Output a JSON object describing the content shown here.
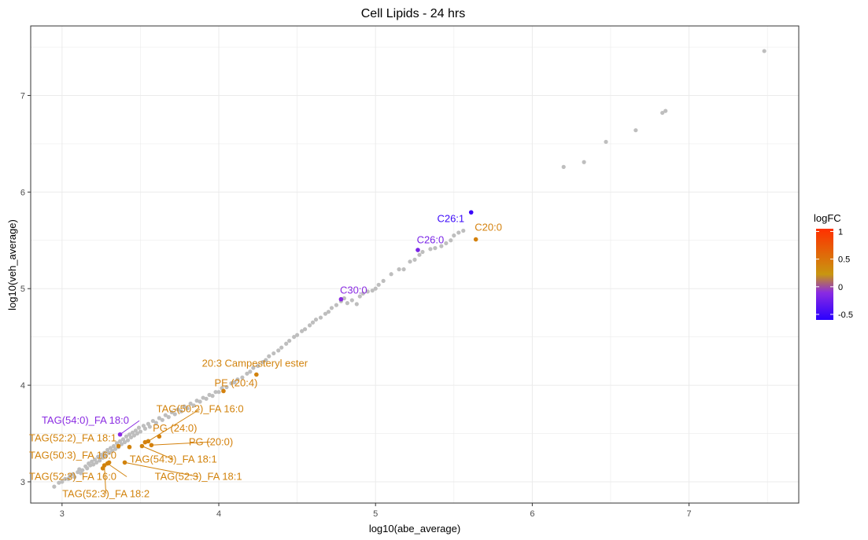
{
  "chart_data": {
    "type": "scatter",
    "title": "Cell Lipids - 24 hrs",
    "xlabel": "log10(abe_average)",
    "ylabel": "log10(veh_average)",
    "xlim": [
      2.8,
      7.7
    ],
    "ylim": [
      2.78,
      7.72
    ],
    "xticks": [
      3,
      4,
      5,
      6,
      7
    ],
    "yticks": [
      3,
      4,
      5,
      6,
      7
    ],
    "grid": true,
    "legend": {
      "title": "logFC",
      "position": "right",
      "ticks": [
        1,
        0.5,
        0,
        -0.5
      ],
      "range": [
        -0.6,
        1.05
      ],
      "colors": {
        "low": "#2a00ff",
        "mid_low": "#8a2be2",
        "mid": "#c89610",
        "high": "#ff3000"
      }
    },
    "background_color": "#bebebe",
    "background_points": [
      [
        2.95,
        2.95
      ],
      [
        2.98,
        2.99
      ],
      [
        3.0,
        3.0
      ],
      [
        3.02,
        3.03
      ],
      [
        3.04,
        3.03
      ],
      [
        3.05,
        3.06
      ],
      [
        3.07,
        3.08
      ],
      [
        3.08,
        3.05
      ],
      [
        3.1,
        3.1
      ],
      [
        3.11,
        3.13
      ],
      [
        3.12,
        3.09
      ],
      [
        3.13,
        3.12
      ],
      [
        3.15,
        3.16
      ],
      [
        3.16,
        3.14
      ],
      [
        3.17,
        3.19
      ],
      [
        3.18,
        3.17
      ],
      [
        3.19,
        3.21
      ],
      [
        3.2,
        3.18
      ],
      [
        3.21,
        3.23
      ],
      [
        3.22,
        3.2
      ],
      [
        3.23,
        3.26
      ],
      [
        3.24,
        3.22
      ],
      [
        3.25,
        3.28
      ],
      [
        3.26,
        3.25
      ],
      [
        3.27,
        3.3
      ],
      [
        3.28,
        3.27
      ],
      [
        3.29,
        3.33
      ],
      [
        3.3,
        3.3
      ],
      [
        3.31,
        3.35
      ],
      [
        3.32,
        3.32
      ],
      [
        3.33,
        3.37
      ],
      [
        3.34,
        3.34
      ],
      [
        3.35,
        3.4
      ],
      [
        3.36,
        3.36
      ],
      [
        3.37,
        3.42
      ],
      [
        3.38,
        3.39
      ],
      [
        3.39,
        3.44
      ],
      [
        3.4,
        3.41
      ],
      [
        3.41,
        3.47
      ],
      [
        3.42,
        3.43
      ],
      [
        3.43,
        3.49
      ],
      [
        3.44,
        3.46
      ],
      [
        3.45,
        3.51
      ],
      [
        3.46,
        3.48
      ],
      [
        3.47,
        3.53
      ],
      [
        3.48,
        3.5
      ],
      [
        3.49,
        3.56
      ],
      [
        3.5,
        3.52
      ],
      [
        3.52,
        3.58
      ],
      [
        3.53,
        3.55
      ],
      [
        3.55,
        3.6
      ],
      [
        3.56,
        3.57
      ],
      [
        3.58,
        3.63
      ],
      [
        3.6,
        3.61
      ],
      [
        3.62,
        3.66
      ],
      [
        3.64,
        3.64
      ],
      [
        3.66,
        3.69
      ],
      [
        3.68,
        3.67
      ],
      [
        3.7,
        3.72
      ],
      [
        3.72,
        3.7
      ],
      [
        3.74,
        3.75
      ],
      [
        3.76,
        3.73
      ],
      [
        3.78,
        3.78
      ],
      [
        3.8,
        3.76
      ],
      [
        3.82,
        3.81
      ],
      [
        3.84,
        3.79
      ],
      [
        3.86,
        3.84
      ],
      [
        3.88,
        3.83
      ],
      [
        3.9,
        3.87
      ],
      [
        3.92,
        3.86
      ],
      [
        3.94,
        3.9
      ],
      [
        3.96,
        3.89
      ],
      [
        3.98,
        3.93
      ],
      [
        4.0,
        3.93
      ],
      [
        4.02,
        3.97
      ],
      [
        4.05,
        3.98
      ],
      [
        4.08,
        4.02
      ],
      [
        4.1,
        4.03
      ],
      [
        4.12,
        4.06
      ],
      [
        4.15,
        4.08
      ],
      [
        4.18,
        4.12
      ],
      [
        4.2,
        4.14
      ],
      [
        4.22,
        4.18
      ],
      [
        4.25,
        4.2
      ],
      [
        4.28,
        4.24
      ],
      [
        4.3,
        4.26
      ],
      [
        4.32,
        4.3
      ],
      [
        4.35,
        4.33
      ],
      [
        4.38,
        4.36
      ],
      [
        4.4,
        4.39
      ],
      [
        4.43,
        4.43
      ],
      [
        4.45,
        4.46
      ],
      [
        4.48,
        4.5
      ],
      [
        4.5,
        4.52
      ],
      [
        4.53,
        4.56
      ],
      [
        4.55,
        4.58
      ],
      [
        4.58,
        4.62
      ],
      [
        4.6,
        4.65
      ],
      [
        4.62,
        4.68
      ],
      [
        4.65,
        4.7
      ],
      [
        4.68,
        4.74
      ],
      [
        4.7,
        4.76
      ],
      [
        4.72,
        4.8
      ],
      [
        4.75,
        4.83
      ],
      [
        4.78,
        4.87
      ],
      [
        4.8,
        4.9
      ],
      [
        4.82,
        4.85
      ],
      [
        4.85,
        4.88
      ],
      [
        4.88,
        4.84
      ],
      [
        4.9,
        4.92
      ],
      [
        4.92,
        4.95
      ],
      [
        4.95,
        4.97
      ],
      [
        4.98,
        4.98
      ],
      [
        5.0,
        5.0
      ],
      [
        5.02,
        5.04
      ],
      [
        5.05,
        5.08
      ],
      [
        5.1,
        5.15
      ],
      [
        5.15,
        5.2
      ],
      [
        5.18,
        5.2
      ],
      [
        5.22,
        5.28
      ],
      [
        5.25,
        5.3
      ],
      [
        5.28,
        5.35
      ],
      [
        5.3,
        5.38
      ],
      [
        5.35,
        5.41
      ],
      [
        5.38,
        5.42
      ],
      [
        5.42,
        5.44
      ],
      [
        5.45,
        5.47
      ],
      [
        5.48,
        5.5
      ],
      [
        5.5,
        5.55
      ],
      [
        5.53,
        5.58
      ],
      [
        5.56,
        5.6
      ],
      [
        6.2,
        6.26
      ],
      [
        6.33,
        6.31
      ],
      [
        6.47,
        6.52
      ],
      [
        6.66,
        6.64
      ],
      [
        6.83,
        6.82
      ],
      [
        6.85,
        6.84
      ],
      [
        7.48,
        7.46
      ]
    ],
    "highlighted": [
      {
        "label": "C26:1",
        "x": 5.61,
        "y": 5.79,
        "logFC": -0.55,
        "lx": 5.48,
        "ly": 5.69,
        "anchor": "middle"
      },
      {
        "label": "C20:0",
        "x": 5.64,
        "y": 5.51,
        "logFC": 0.3,
        "lx": 5.72,
        "ly": 5.6,
        "anchor": "middle"
      },
      {
        "label": "C26:0",
        "x": 5.27,
        "y": 5.4,
        "logFC": -0.35,
        "lx": 5.35,
        "ly": 5.47,
        "anchor": "middle"
      },
      {
        "label": "C30:0",
        "x": 4.78,
        "y": 4.89,
        "logFC": -0.3,
        "lx": 4.86,
        "ly": 4.95,
        "anchor": "middle"
      },
      {
        "label": "20:3 Campesteryl ester",
        "x": 4.24,
        "y": 4.11,
        "logFC": 0.28,
        "lx": 4.23,
        "ly": 4.19,
        "anchor": "middle"
      },
      {
        "label": "PE (20:4)",
        "x": 4.03,
        "y": 3.94,
        "logFC": 0.3,
        "lx": 4.11,
        "ly": 3.99,
        "anchor": "middle"
      },
      {
        "label": "TAG(50:2)_FA 16:0",
        "x": 3.55,
        "y": 3.42,
        "logFC": 0.28,
        "lx": 3.88,
        "ly": 3.72,
        "anchor": "middle",
        "line": true
      },
      {
        "label": "TAG(54:0)_FA 18:0",
        "x": 3.37,
        "y": 3.49,
        "logFC": -0.3,
        "lx": 2.87,
        "ly": 3.6,
        "anchor": "start",
        "line": true
      },
      {
        "label": "PG (24:0)",
        "x": 3.53,
        "y": 3.41,
        "logFC": 0.3,
        "lx": 3.72,
        "ly": 3.52,
        "anchor": "middle"
      },
      {
        "label": "TAG(52:2)_FA 18:1",
        "x": 3.36,
        "y": 3.37,
        "logFC": 0.28,
        "lx": 2.79,
        "ly": 3.42,
        "anchor": "start"
      },
      {
        "label": "PG (20:0)",
        "x": 3.57,
        "y": 3.38,
        "logFC": 0.3,
        "lx": 3.95,
        "ly": 3.38,
        "anchor": "middle",
        "line": true
      },
      {
        "label": "TAG(50:3)_FA 16:0",
        "x": 3.43,
        "y": 3.36,
        "logFC": 0.28,
        "lx": 2.79,
        "ly": 3.24,
        "anchor": "start"
      },
      {
        "label": "TAG(54:3)_FA 18:1",
        "x": 3.51,
        "y": 3.37,
        "logFC": 0.28,
        "lx": 3.71,
        "ly": 3.2,
        "anchor": "middle",
        "line": true
      },
      {
        "label": "TAG(52:3)_FA 16:0",
        "x": 3.29,
        "y": 3.19,
        "logFC": 0.28,
        "lx": 2.79,
        "ly": 3.02,
        "anchor": "start",
        "line": true
      },
      {
        "label": "TAG(52:3)_FA 18:1",
        "x": 3.4,
        "y": 3.2,
        "logFC": 0.28,
        "lx": 3.87,
        "ly": 3.02,
        "anchor": "middle",
        "line": true
      },
      {
        "label": "TAG(52:3)_FA 18:2",
        "x": 3.27,
        "y": 3.17,
        "logFC": 0.28,
        "lx": 3.28,
        "ly": 2.84,
        "anchor": "middle",
        "line": true
      },
      {
        "label": "",
        "x": 3.62,
        "y": 3.47,
        "logFC": 0.3
      },
      {
        "label": "",
        "x": 3.26,
        "y": 3.14,
        "logFC": 0.28
      },
      {
        "label": "",
        "x": 3.3,
        "y": 3.2,
        "logFC": 0.28
      }
    ]
  }
}
